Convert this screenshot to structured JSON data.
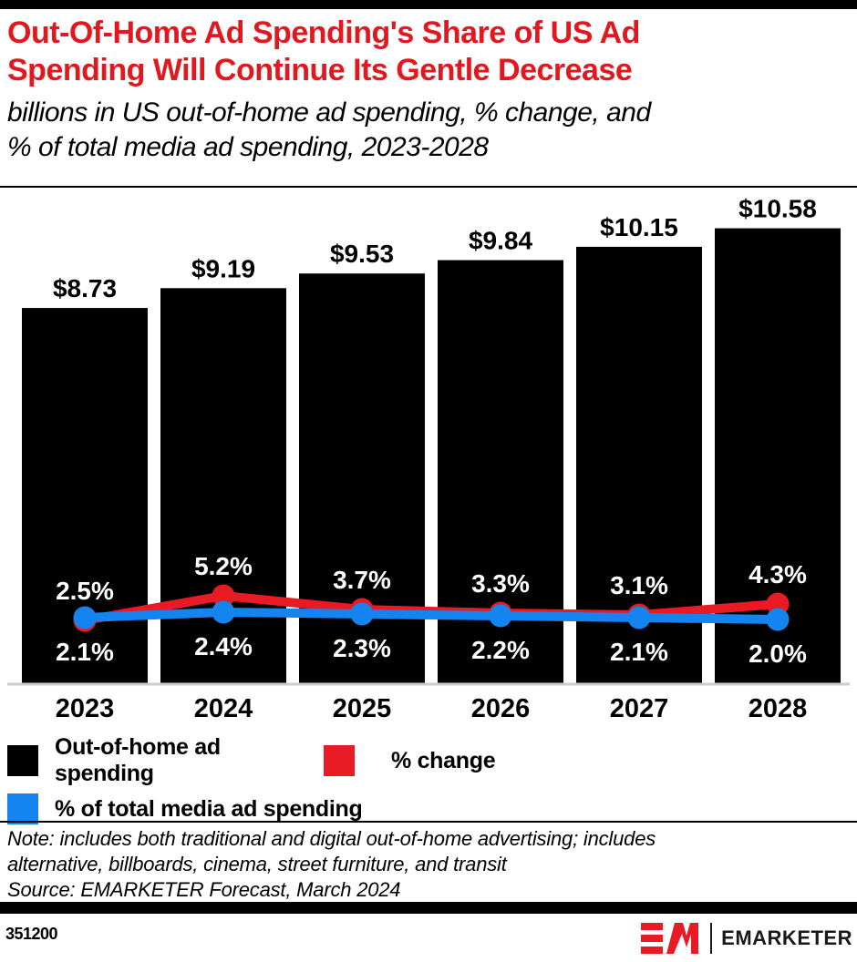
{
  "header": {
    "title_lines": [
      "Out-Of-Home Ad Spending's Share of US Ad",
      "Spending Will Continue Its Gentle Decrease"
    ],
    "subtitle_lines": [
      "billions in US out-of-home ad spending, % change, and",
      "% of total media ad spending, 2023-2028"
    ]
  },
  "colors": {
    "title_red": "#e2181f",
    "accent_red": "#e81a23",
    "accent_blue": "#1485f0",
    "bar_black": "#000000",
    "axis_gray": "#cccccc"
  },
  "chart_data": {
    "type": "bar+line combo",
    "categories": [
      "2023",
      "2024",
      "2025",
      "2026",
      "2027",
      "2028"
    ],
    "series": [
      {
        "name": "Out-of-home ad spending",
        "type": "bar",
        "color": "#000000",
        "values": [
          8.73,
          9.19,
          9.53,
          9.84,
          10.15,
          10.58
        ],
        "labels": [
          "$8.73",
          "$9.19",
          "$9.53",
          "$9.84",
          "$10.15",
          "$10.58"
        ]
      },
      {
        "name": "% change",
        "type": "line",
        "color": "#e81a23",
        "values": [
          2.5,
          5.2,
          3.7,
          3.3,
          3.1,
          4.3
        ],
        "labels": [
          "2.5%",
          "5.2%",
          "3.7%",
          "3.3%",
          "3.1%",
          "4.3%"
        ]
      },
      {
        "name": "% of total media ad spending",
        "type": "line",
        "color": "#1485f0",
        "values": [
          2.1,
          2.4,
          2.3,
          2.2,
          2.1,
          2.0
        ],
        "labels": [
          "2.1%",
          "2.4%",
          "2.3%",
          "2.2%",
          "2.1%",
          "2.0%"
        ]
      }
    ],
    "title": "Out-Of-Home Ad Spending's Share of US Ad Spending Will Continue Its Gentle Decrease",
    "subtitle": "billions in US out-of-home ad spending, % change, and % of total media ad spending, 2023-2028",
    "xlabel": "",
    "ylabel": "",
    "ylim_bars_billions": [
      0,
      11.5
    ],
    "grid": false,
    "data_labels": true,
    "legend_position": "bottom"
  },
  "legend": {
    "items": [
      {
        "label": "Out-of-home ad spending",
        "color": "#000000"
      },
      {
        "label": "% change",
        "color": "#e81a23"
      },
      {
        "label": "% of total media ad spending",
        "color": "#1485f0"
      }
    ]
  },
  "notes": {
    "note_lines": [
      "Note: includes both traditional and digital out-of-home advertising; includes",
      "alternative, billboards, cinema, street furniture, and transit"
    ],
    "source": "Source: EMARKETER Forecast, March 2024"
  },
  "footer": {
    "chart_id": "351200",
    "brand_text": "EMARKETER"
  }
}
